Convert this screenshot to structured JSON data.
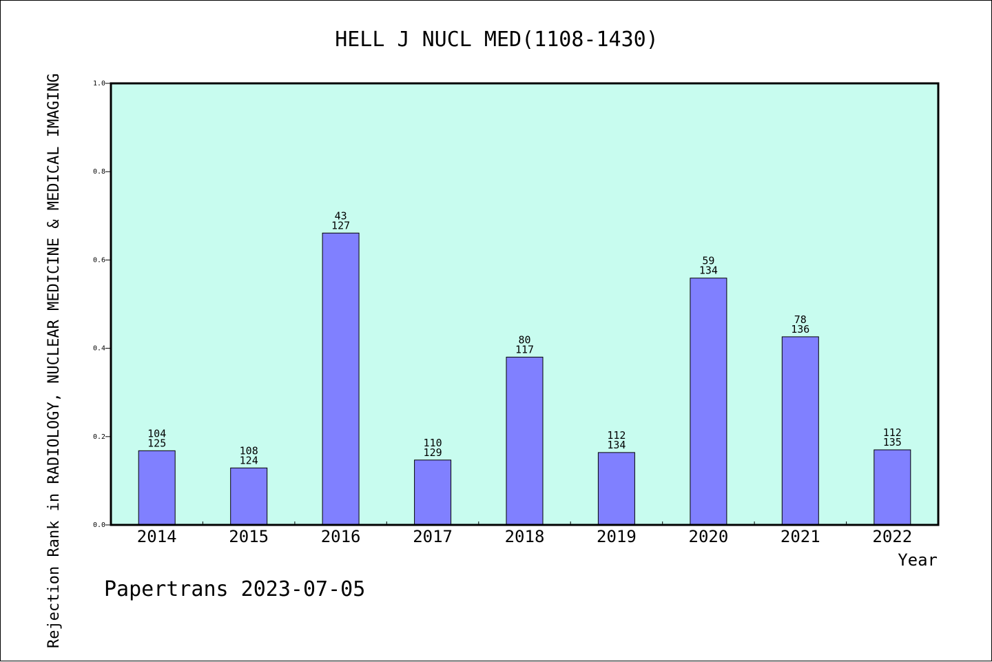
{
  "chart_data": {
    "type": "bar",
    "title": "HELL J NUCL MED(1108-1430)",
    "xlabel": "Year",
    "ylabel": "Rejection Rank in RADIOLOGY, NUCLEAR MEDICINE & MEDICAL IMAGING",
    "categories": [
      "2014",
      "2015",
      "2016",
      "2017",
      "2018",
      "2019",
      "2020",
      "2021",
      "2022"
    ],
    "values": [
      0.168,
      0.129,
      0.661,
      0.147,
      0.38,
      0.164,
      0.559,
      0.426,
      0.17
    ],
    "label_top": [
      "104",
      "108",
      "43",
      "110",
      "80",
      "112",
      "59",
      "78",
      "112"
    ],
    "label_bottom": [
      "125",
      "124",
      "127",
      "129",
      "117",
      "134",
      "134",
      "136",
      "135"
    ],
    "ylim": [
      0.0,
      1.0
    ],
    "yticks": [
      "0.0",
      "0.2",
      "0.4",
      "0.6",
      "0.8",
      "1.0"
    ],
    "grid": false,
    "plot_background": "#c8fcef",
    "bar_color": "#8080ff",
    "footer": "Papertrans 2023-07-05"
  }
}
